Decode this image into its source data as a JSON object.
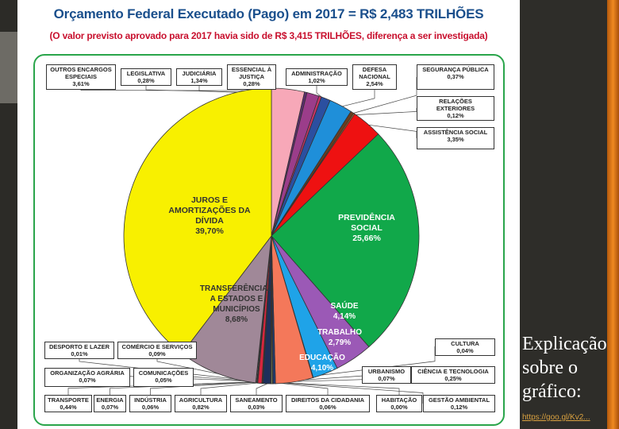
{
  "title": "Orçamento Federal Executado (Pago) em 2017 = R$ 2,483 TRILHÕES",
  "subtitle": "(O valor previsto aprovado para 2017 havia sido de R$ 3,415 TRILHÕES, diferença a ser investigada)",
  "slide_text": {
    "explanation": "Explicação sobre o gráfico:",
    "link": "https://goo.gl/Kv2..."
  },
  "chart_data": {
    "type": "pie",
    "title": "Orçamento Federal Executado (Pago) em 2017 = R$ 2,483 TRILHÕES",
    "slices": [
      {
        "id": "outros-encargos",
        "label": "OUTROS ENCARGOS ESPECIAIS",
        "value_label": "3,61%",
        "value": 3.61,
        "color": "#f7a8b8"
      },
      {
        "id": "legislativa",
        "label": "LEGISLATIVA",
        "value_label": "0,28%",
        "value": 0.28,
        "color": "#5b2d6e"
      },
      {
        "id": "judiciaria",
        "label": "JUDICIÁRIA",
        "value_label": "1,34%",
        "value": 1.34,
        "color": "#9b3d8a"
      },
      {
        "id": "essencial-justica",
        "label": "ESSENCIAL À JUSTIÇA",
        "value_label": "0,28%",
        "value": 0.28,
        "color": "#cc3366"
      },
      {
        "id": "administracao",
        "label": "ADMINISTRAÇÃO",
        "value_label": "1,02%",
        "value": 1.02,
        "color": "#2b4fa0"
      },
      {
        "id": "defesa",
        "label": "DEFESA NACIONAL",
        "value_label": "2,54%",
        "value": 2.54,
        "color": "#1f8fd9"
      },
      {
        "id": "seguranca",
        "label": "SEGURANÇA PÚBLICA",
        "value_label": "0,37%",
        "value": 0.37,
        "color": "#6a3d1f"
      },
      {
        "id": "relacoes",
        "label": "RELAÇÕES EXTERIORES",
        "value_label": "0,12%",
        "value": 0.12,
        "color": "#f28c28"
      },
      {
        "id": "assistencia",
        "label": "ASSISTÊNCIA SOCIAL",
        "value_label": "3,35%",
        "value": 3.35,
        "color": "#ee1111"
      },
      {
        "id": "previdencia",
        "label": "PREVIDÊNCIA SOCIAL",
        "value_label": "25,66%",
        "value": 25.66,
        "color": "#11a84a"
      },
      {
        "id": "saude",
        "label": "SAÚDE",
        "value_label": "4,14%",
        "value": 4.14,
        "color": "#9b59b6"
      },
      {
        "id": "trabalho",
        "label": "TRABALHO",
        "value_label": "2,79%",
        "value": 2.79,
        "color": "#1fa3e8"
      },
      {
        "id": "cultura",
        "label": "CULTURA",
        "value_label": "0,04%",
        "value": 0.04,
        "color": "#e9d5a0"
      },
      {
        "id": "educacao",
        "label": "EDUCAÇÃO",
        "value_label": "4,10%",
        "value": 4.1,
        "color": "#f4785a"
      },
      {
        "id": "ciencia",
        "label": "CIÊNCIA E TECNOLOGIA",
        "value_label": "0,25%",
        "value": 0.25,
        "color": "#1f3d7a"
      },
      {
        "id": "urbanismo",
        "label": "URBANISMO",
        "value_label": "0,07%",
        "value": 0.07,
        "color": "#6bb36b"
      },
      {
        "id": "gestao-ambiental",
        "label": "GESTÃO AMBIENTAL",
        "value_label": "0,12%",
        "value": 0.12,
        "color": "#c3d98a"
      },
      {
        "id": "habitacao",
        "label": "HABITAÇÃO",
        "value_label": "0,00%",
        "value": 0.0,
        "color": "#999999"
      },
      {
        "id": "direitos",
        "label": "DIREITOS DA CIDADANIA",
        "value_label": "0,06%",
        "value": 0.06,
        "color": "#e3d94f"
      },
      {
        "id": "saneamento",
        "label": "SANEAMENTO",
        "value_label": "0,03%",
        "value": 0.03,
        "color": "#7fb5d9"
      },
      {
        "id": "agricultura",
        "label": "AGRICULTURA",
        "value_label": "0,82%",
        "value": 0.82,
        "color": "#1e2f5a"
      },
      {
        "id": "industria",
        "label": "INDÚSTRIA",
        "value_label": "0,06%",
        "value": 0.06,
        "color": "#888888"
      },
      {
        "id": "energia",
        "label": "ENERGIA",
        "value_label": "0,07%",
        "value": 0.07,
        "color": "#c8b26a"
      },
      {
        "id": "transporte",
        "label": "TRANSPORTE",
        "value_label": "0,44%",
        "value": 0.44,
        "color": "#d7263d"
      },
      {
        "id": "comunicacoes",
        "label": "COMUNICAÇÕES",
        "value_label": "0,05%",
        "value": 0.05,
        "color": "#7a7a7a"
      },
      {
        "id": "organizacao-agraria",
        "label": "ORGANIZAÇÃO AGRÁRIA",
        "value_label": "0,07%",
        "value": 0.07,
        "color": "#e3e3e3"
      },
      {
        "id": "comercio",
        "label": "COMÉRCIO E SERVIÇOS",
        "value_label": "0,09%",
        "value": 0.09,
        "color": "#b0b0b0"
      },
      {
        "id": "desporto",
        "label": "DESPORTO E LAZER",
        "value_label": "0,01%",
        "value": 0.01,
        "color": "#f2f2f2"
      },
      {
        "id": "transferencias",
        "label": "TRANSFERÊNCIAS A ESTADOS E MUNICÍPIOS",
        "value_label": "8,68%",
        "value": 8.68,
        "color": "#a08898"
      },
      {
        "id": "juros",
        "label": "JUROS E AMORTIZAÇÕES DA DÍVIDA",
        "value_label": "39,70%",
        "value": 39.7,
        "color": "#f8f000"
      }
    ]
  }
}
